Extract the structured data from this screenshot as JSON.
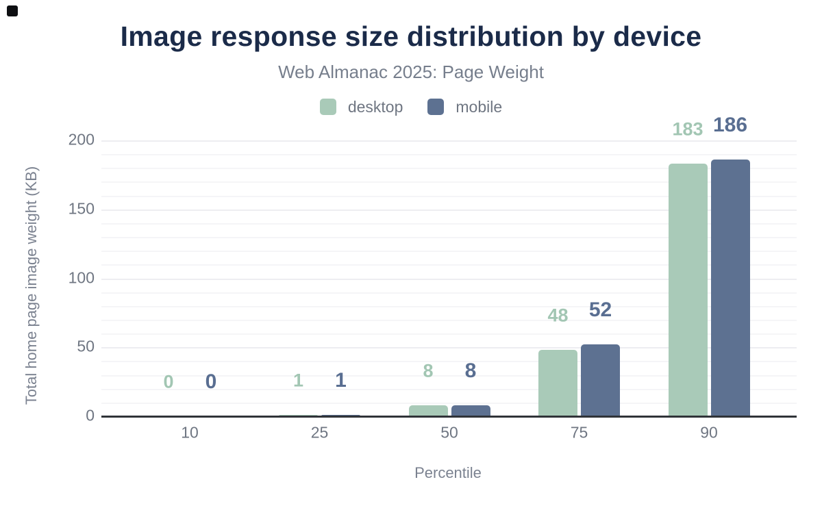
{
  "window": {
    "corner_mark_icon": "black-square-icon"
  },
  "header": {
    "title": "Image response size distribution by device",
    "subtitle": "Web Almanac 2025: Page Weight"
  },
  "axes": {
    "x_title": "Percentile",
    "y_title": "Total home page image weight (KB)",
    "x_tick_labels": [
      "10",
      "25",
      "50",
      "75",
      "90"
    ],
    "y_tick_labels": [
      "0",
      "50",
      "100",
      "150",
      "200"
    ]
  },
  "legend": {
    "items": [
      {
        "label": "desktop",
        "color": "#a9cab8"
      },
      {
        "label": "mobile",
        "color": "#5d7191"
      }
    ]
  },
  "colors": {
    "title_text": "#1b2b49",
    "subtitle_text": "#767e8c",
    "tick_text": "#6f7682",
    "axis_title_text": "#7b8290",
    "grid_minor": "#f5f5f7",
    "grid_major": "#ededf1",
    "axis_line": "#303338",
    "desktop_bar": "#a9cab8",
    "mobile_bar": "#5d7191",
    "desktop_label_text": "#a2c6b3",
    "mobile_label_text": "#596e91"
  },
  "chart_data": {
    "type": "bar",
    "title": "Image response size distribution by device",
    "subtitle": "Web Almanac 2025: Page Weight",
    "categories": [
      "10",
      "25",
      "50",
      "75",
      "90"
    ],
    "series": [
      {
        "name": "desktop",
        "values": [
          0,
          1,
          8,
          48,
          183
        ],
        "color": "#a9cab8",
        "label_color": "#a2c6b3"
      },
      {
        "name": "mobile",
        "values": [
          0,
          1,
          8,
          52,
          186
        ],
        "color": "#5d7191",
        "label_color": "#596e91"
      }
    ],
    "xlabel": "Percentile",
    "ylabel": "Total home page image weight (KB)",
    "ylim": [
      0,
      200
    ],
    "yticks": [
      0,
      50,
      100,
      150,
      200
    ],
    "minor_grid_step": 10,
    "grid": true,
    "data_labels": true,
    "legend_position": "top"
  }
}
